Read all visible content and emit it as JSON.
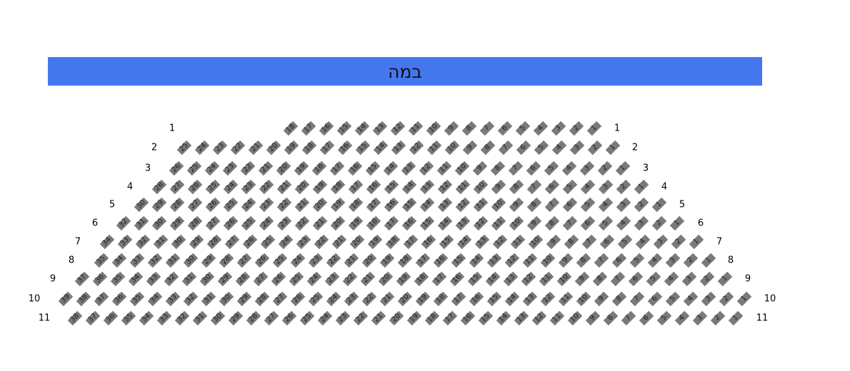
{
  "stage": {
    "label": "במה",
    "color": "#4477ee"
  },
  "seat_color": "#7a7a7a",
  "rows": [
    {
      "label": "1",
      "seats": [
        18,
        17,
        16,
        15,
        14,
        13,
        12,
        11,
        10,
        9,
        8,
        7,
        6,
        5,
        4,
        3,
        2,
        1
      ]
    },
    {
      "label": "2",
      "seats": [
        25,
        24,
        23,
        22,
        21,
        20,
        19,
        18,
        17,
        16,
        15,
        14,
        13,
        12,
        11,
        10,
        9,
        8,
        7,
        6,
        5,
        4,
        3,
        2,
        1
      ]
    },
    {
      "label": "3",
      "seats": [
        26,
        25,
        24,
        23,
        22,
        21,
        20,
        19,
        18,
        17,
        16,
        15,
        14,
        13,
        12,
        11,
        10,
        9,
        8,
        7,
        6,
        5,
        4,
        3,
        2,
        1
      ]
    },
    {
      "label": "4",
      "seats": [
        28,
        27,
        26,
        25,
        24,
        23,
        22,
        21,
        20,
        19,
        18,
        17,
        16,
        15,
        14,
        13,
        12,
        11,
        10,
        9,
        8,
        7,
        6,
        5,
        4,
        3,
        2,
        1
      ]
    },
    {
      "label": "5",
      "seats": [
        30,
        29,
        28,
        27,
        26,
        25,
        24,
        23,
        22,
        21,
        20,
        19,
        18,
        17,
        16,
        15,
        14,
        13,
        12,
        11,
        10,
        9,
        8,
        7,
        6,
        5,
        4,
        3,
        2,
        1
      ]
    },
    {
      "label": "6",
      "seats": [
        32,
        31,
        30,
        29,
        28,
        27,
        26,
        25,
        24,
        23,
        22,
        21,
        20,
        19,
        18,
        17,
        16,
        15,
        14,
        13,
        12,
        11,
        10,
        9,
        8,
        7,
        6,
        5,
        4,
        3,
        2,
        1
      ]
    },
    {
      "label": "7",
      "seats": [
        34,
        33,
        32,
        31,
        30,
        29,
        28,
        27,
        26,
        25,
        24,
        23,
        22,
        21,
        20,
        19,
        18,
        17,
        16,
        15,
        14,
        13,
        12,
        11,
        10,
        9,
        8,
        7,
        6,
        5,
        4,
        3,
        2,
        1
      ]
    },
    {
      "label": "8",
      "seats": [
        35,
        34,
        33,
        32,
        31,
        30,
        29,
        28,
        27,
        26,
        25,
        24,
        23,
        22,
        21,
        20,
        19,
        18,
        17,
        16,
        15,
        14,
        13,
        12,
        11,
        10,
        9,
        8,
        7,
        6,
        5,
        4,
        3,
        2,
        1
      ]
    },
    {
      "label": "9",
      "seats": [
        37,
        36,
        35,
        34,
        33,
        32,
        31,
        30,
        29,
        28,
        27,
        26,
        25,
        24,
        23,
        22,
        21,
        20,
        19,
        18,
        17,
        16,
        15,
        14,
        13,
        12,
        11,
        10,
        9,
        8,
        7,
        6,
        5,
        4,
        3,
        2,
        1
      ]
    },
    {
      "label": "10",
      "seats": [
        39,
        38,
        37,
        36,
        35,
        34,
        33,
        32,
        31,
        30,
        29,
        28,
        27,
        26,
        25,
        24,
        23,
        22,
        21,
        20,
        19,
        18,
        17,
        16,
        15,
        14,
        13,
        12,
        11,
        10,
        9,
        8,
        7,
        6,
        5,
        4,
        3,
        2,
        1
      ]
    },
    {
      "label": "11",
      "seats": [
        38,
        37,
        36,
        35,
        34,
        33,
        32,
        31,
        30,
        29,
        28,
        27,
        26,
        25,
        24,
        23,
        22,
        21,
        20,
        19,
        18,
        17,
        16,
        15,
        14,
        13,
        12,
        11,
        10,
        9,
        8,
        7,
        6,
        5,
        4,
        3,
        2,
        1
      ]
    }
  ]
}
